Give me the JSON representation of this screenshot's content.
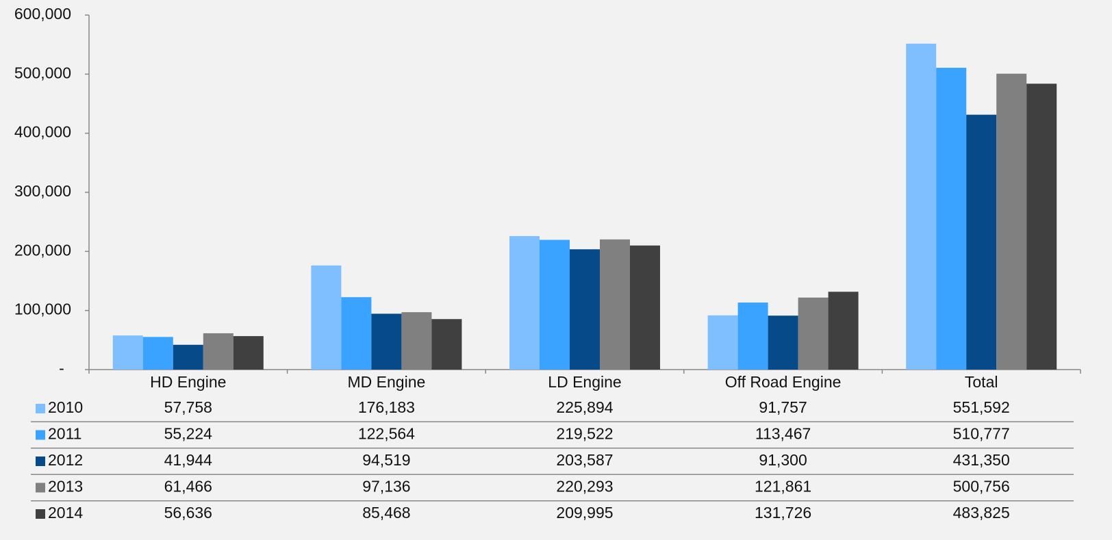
{
  "chart_data": {
    "type": "bar",
    "categories": [
      "HD Engine",
      "MD Engine",
      "LD Engine",
      "Off Road Engine",
      "Total"
    ],
    "series": [
      {
        "name": "2010",
        "color": "#7fbfff",
        "values": [
          57758,
          176183,
          225894,
          91757,
          551592
        ],
        "value_labels": [
          "57,758",
          "176,183",
          "225,894",
          "91,757",
          "551,592"
        ]
      },
      {
        "name": "2011",
        "color": "#3aa3ff",
        "values": [
          55224,
          122564,
          219522,
          113467,
          510777
        ],
        "value_labels": [
          "55,224",
          "122,564",
          "219,522",
          "113,467",
          "510,777"
        ]
      },
      {
        "name": "2012",
        "color": "#064a8a",
        "values": [
          41944,
          94519,
          203587,
          91300,
          431350
        ],
        "value_labels": [
          "41,944",
          "94,519",
          "203,587",
          "91,300",
          "431,350"
        ]
      },
      {
        "name": "2013",
        "color": "#808080",
        "values": [
          61466,
          97136,
          220293,
          121861,
          500756
        ],
        "value_labels": [
          "61,466",
          "97,136",
          "220,293",
          "121,861",
          "500,756"
        ]
      },
      {
        "name": "2014",
        "color": "#404040",
        "values": [
          56636,
          85468,
          209995,
          131726,
          483825
        ],
        "value_labels": [
          "56,636",
          "85,468",
          "209,995",
          "131,726",
          "483,825"
        ]
      }
    ],
    "ylim": [
      0,
      600000
    ],
    "yticks": [
      {
        "value": 0,
        "label": "-"
      },
      {
        "value": 100000,
        "label": "100,000"
      },
      {
        "value": 200000,
        "label": "200,000"
      },
      {
        "value": 300000,
        "label": "300,000"
      },
      {
        "value": 400000,
        "label": "400,000"
      },
      {
        "value": 500000,
        "label": "500,000"
      },
      {
        "value": 600000,
        "label": "600,000"
      }
    ],
    "grid": false
  }
}
